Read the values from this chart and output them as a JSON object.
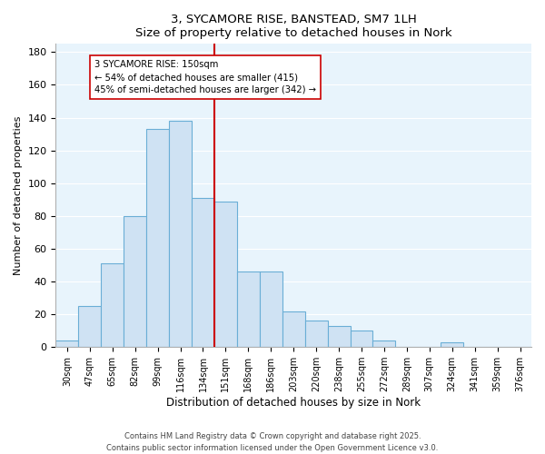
{
  "title": "3, SYCAMORE RISE, BANSTEAD, SM7 1LH",
  "subtitle": "Size of property relative to detached houses in Nork",
  "xlabel": "Distribution of detached houses by size in Nork",
  "ylabel": "Number of detached properties",
  "bar_labels": [
    "30sqm",
    "47sqm",
    "65sqm",
    "82sqm",
    "99sqm",
    "116sqm",
    "134sqm",
    "151sqm",
    "168sqm",
    "186sqm",
    "203sqm",
    "220sqm",
    "238sqm",
    "255sqm",
    "272sqm",
    "289sqm",
    "307sqm",
    "324sqm",
    "341sqm",
    "359sqm",
    "376sqm"
  ],
  "bar_values": [
    4,
    25,
    51,
    80,
    133,
    138,
    91,
    89,
    46,
    46,
    22,
    16,
    13,
    10,
    4,
    0,
    0,
    3,
    0,
    0,
    0
  ],
  "bar_color": "#cfe2f3",
  "bar_edge_color": "#6aaed6",
  "vline_color": "#cc0000",
  "annotation_title": "3 SYCAMORE RISE: 150sqm",
  "annotation_line1": "← 54% of detached houses are smaller (415)",
  "annotation_line2": "45% of semi-detached houses are larger (342) →",
  "annotation_box_color": "#ffffff",
  "annotation_box_edge": "#cc0000",
  "ylim": [
    0,
    185
  ],
  "yticks": [
    0,
    20,
    40,
    60,
    80,
    100,
    120,
    140,
    160,
    180
  ],
  "footer1": "Contains HM Land Registry data © Crown copyright and database right 2025.",
  "footer2": "Contains public sector information licensed under the Open Government Licence v3.0.",
  "bg_color": "#ffffff",
  "plot_bg_color": "#e8f4fc",
  "grid_color": "#ffffff",
  "spine_color": "#b0b0b0"
}
